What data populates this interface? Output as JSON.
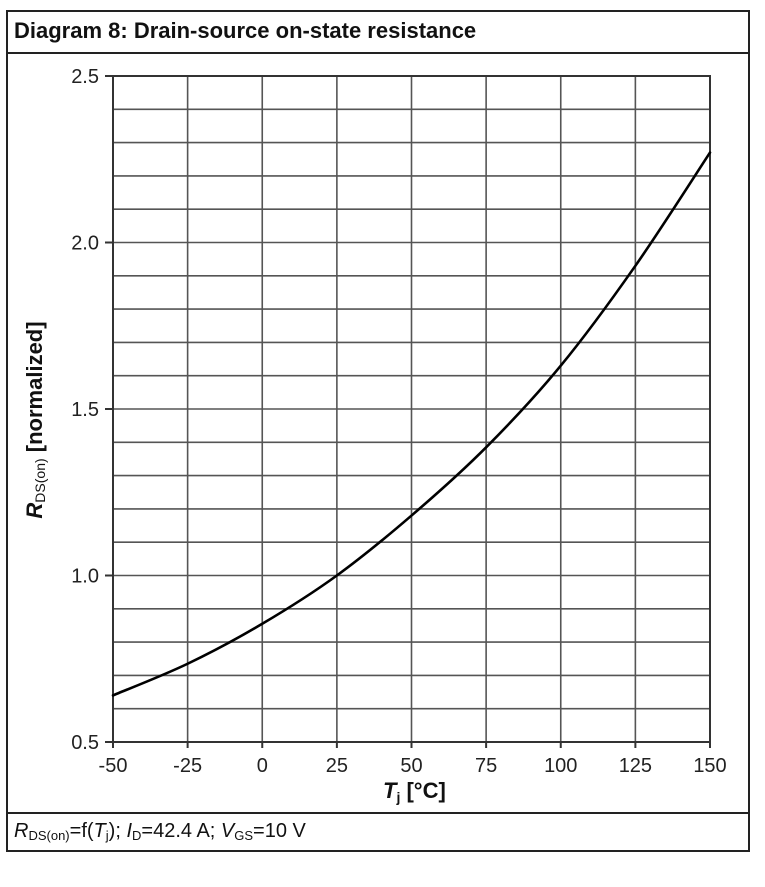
{
  "title": "Diagram 8: Drain-source on-state resistance",
  "caption": {
    "r_sym": "R",
    "r_sub": "DS(on)",
    "eq_pre": "=f(",
    "t_sym": "T",
    "t_sub": "j",
    "eq_post": "); ",
    "i_sym": "I",
    "i_sub": "D",
    "i_val": "=42.4 A; ",
    "v_sym": "V",
    "v_sub": "GS",
    "v_val": "=10 V"
  },
  "chart_data": {
    "type": "line",
    "title": "Diagram 8: Drain-source on-state resistance",
    "xlabel": "Tj [°C]",
    "ylabel": "RDS(on) [normalized]",
    "xlim": [
      -50,
      150
    ],
    "ylim": [
      0.5,
      2.5
    ],
    "x_ticks": [
      "-50",
      "-25",
      "0",
      "25",
      "50",
      "75",
      "100",
      "125",
      "150"
    ],
    "y_ticks": [
      "0.5",
      "1.0",
      "1.5",
      "2.0",
      "2.5"
    ],
    "grid": true,
    "series": [
      {
        "color": "#000000",
        "x": [
          -50,
          -25,
          0,
          25,
          50,
          75,
          100,
          125,
          150
        ],
        "y": [
          0.64,
          0.735,
          0.855,
          1.0,
          1.18,
          1.385,
          1.63,
          1.93,
          2.27
        ]
      }
    ]
  }
}
